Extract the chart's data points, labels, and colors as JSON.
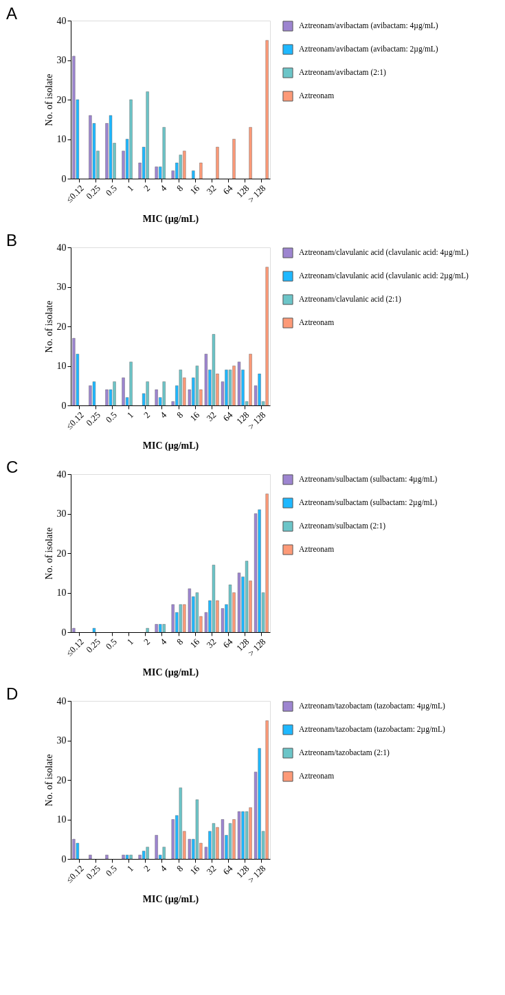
{
  "chart_data": [
    {
      "type": "bar",
      "title": "A",
      "xlabel": "MIC (µg/mL)",
      "ylabel": "No. of isolate",
      "ylim": [
        0,
        40
      ],
      "yticks": [
        0,
        10,
        20,
        30,
        40
      ],
      "legend": "right",
      "grid": false,
      "categories": [
        "≤0.12",
        "0.25",
        "0.5",
        "1",
        "2",
        "4",
        "8",
        "16",
        "32",
        "64",
        "128",
        "> 128"
      ],
      "series": [
        {
          "name": "Aztreonam/avibactam (avibactam: 4µg/mL)",
          "color": "#9d85d0",
          "values": [
            31,
            16,
            14,
            7,
            4,
            3,
            2,
            null,
            null,
            null,
            null,
            null
          ]
        },
        {
          "name": "Aztreonam/avibactam (avibactam: 2µg/mL)",
          "color": "#1eb8ff",
          "values": [
            20,
            14,
            16,
            10,
            8,
            3,
            4,
            2,
            null,
            null,
            null,
            null
          ]
        },
        {
          "name": "Aztreonam/avibactam (2:1)",
          "color": "#6cc5c8",
          "values": [
            null,
            7,
            9,
            20,
            22,
            13,
            6,
            null,
            null,
            null,
            null,
            null
          ]
        },
        {
          "name": "Aztreonam",
          "color": "#fd9a78",
          "values": [
            null,
            null,
            null,
            null,
            null,
            null,
            7,
            4,
            8,
            10,
            13,
            35
          ]
        }
      ]
    },
    {
      "type": "bar",
      "title": "B",
      "xlabel": "MIC (µg/mL)",
      "ylabel": "No. of isolate",
      "ylim": [
        0,
        40
      ],
      "yticks": [
        0,
        10,
        20,
        30,
        40
      ],
      "legend": "right",
      "grid": false,
      "categories": [
        "≤0.12",
        "0.25",
        "0.5",
        "1",
        "2",
        "4",
        "8",
        "16",
        "32",
        "64",
        "128",
        "> 128"
      ],
      "series": [
        {
          "name": "Aztreonam/clavulanic acid (clavulanic acid: 4µg/mL)",
          "color": "#9d85d0",
          "values": [
            17,
            5,
            4,
            7,
            null,
            4,
            1,
            4,
            13,
            6,
            11,
            5
          ]
        },
        {
          "name": "Aztreonam/clavulanic acid (clavulanic acid: 2µg/mL)",
          "color": "#1eb8ff",
          "values": [
            13,
            6,
            4,
            2,
            3,
            2,
            5,
            7,
            9,
            9,
            9,
            8
          ]
        },
        {
          "name": "Aztreonam/clavulanic acid (2:1)",
          "color": "#6cc5c8",
          "values": [
            null,
            null,
            6,
            11,
            6,
            6,
            9,
            10,
            18,
            9,
            1,
            1
          ]
        },
        {
          "name": "Aztreonam",
          "color": "#fd9a78",
          "values": [
            null,
            null,
            null,
            null,
            null,
            null,
            7,
            4,
            8,
            10,
            13,
            35
          ]
        }
      ]
    },
    {
      "type": "bar",
      "title": "C",
      "xlabel": "MIC (µg/mL)",
      "ylabel": "No. of isolate",
      "ylim": [
        0,
        40
      ],
      "yticks": [
        0,
        10,
        20,
        30,
        40
      ],
      "legend": "right",
      "grid": false,
      "categories": [
        "≤0.12",
        "0.25",
        "0.5",
        "1",
        "2",
        "4",
        "8",
        "16",
        "32",
        "64",
        "128",
        "> 128"
      ],
      "series": [
        {
          "name": "Aztreonam/sulbactam (sulbactam: 4µg/mL)",
          "color": "#9d85d0",
          "values": [
            1,
            null,
            null,
            null,
            null,
            2,
            7,
            11,
            5,
            6,
            15,
            30
          ]
        },
        {
          "name": "Aztreonam/sulbactam (sulbactam: 2µg/mL)",
          "color": "#1eb8ff",
          "values": [
            null,
            1,
            null,
            null,
            null,
            2,
            5,
            9,
            8,
            7,
            14,
            31
          ]
        },
        {
          "name": "Aztreonam/sulbactam (2:1)",
          "color": "#6cc5c8",
          "values": [
            null,
            null,
            null,
            null,
            1,
            2,
            7,
            10,
            17,
            12,
            18,
            10
          ]
        },
        {
          "name": "Aztreonam",
          "color": "#fd9a78",
          "values": [
            null,
            null,
            null,
            null,
            null,
            null,
            7,
            4,
            8,
            10,
            13,
            35
          ]
        }
      ]
    },
    {
      "type": "bar",
      "title": "D",
      "xlabel": "MIC (µg/mL)",
      "ylabel": "No. of isolate",
      "ylim": [
        0,
        40
      ],
      "yticks": [
        0,
        10,
        20,
        30,
        40
      ],
      "legend": "right",
      "grid": false,
      "categories": [
        "≤0.12",
        "0.25",
        "0.5",
        "1",
        "2",
        "4",
        "8",
        "16",
        "32",
        "64",
        "128",
        "> 128"
      ],
      "series": [
        {
          "name": "Aztreonam/tazobactam (tazobactam: 4µg/mL)",
          "color": "#9d85d0",
          "values": [
            5,
            1,
            1,
            1,
            1,
            6,
            10,
            5,
            3,
            10,
            12,
            22
          ]
        },
        {
          "name": "Aztreonam/tazobactam (tazobactam: 2µg/mL)",
          "color": "#1eb8ff",
          "values": [
            4,
            null,
            null,
            1,
            2,
            1,
            11,
            5,
            7,
            6,
            12,
            28
          ]
        },
        {
          "name": "Aztreonam/tazobactam (2:1)",
          "color": "#6cc5c8",
          "values": [
            null,
            null,
            null,
            1,
            3,
            3,
            18,
            15,
            9,
            9,
            12,
            7
          ]
        },
        {
          "name": "Aztreonam",
          "color": "#fd9a78",
          "values": [
            null,
            null,
            null,
            null,
            null,
            null,
            7,
            4,
            8,
            10,
            13,
            35
          ]
        }
      ]
    }
  ]
}
